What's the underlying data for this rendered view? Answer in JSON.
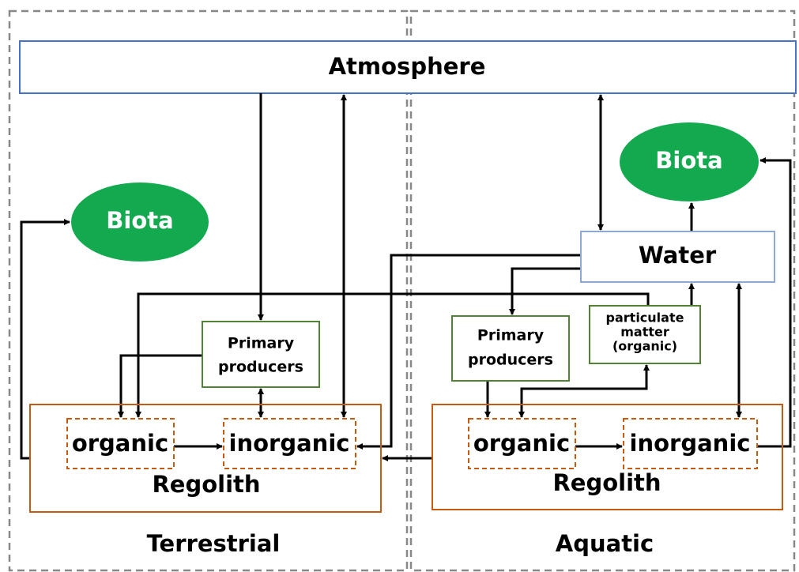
{
  "atmosphere": "Atmosphere",
  "terrestrial": {
    "label": "Terrestrial",
    "biota": "Biota",
    "primary_producers": [
      "Primary",
      "producers"
    ],
    "regolith": "Regolith",
    "organic": "organic",
    "inorganic": "inorganic"
  },
  "aquatic": {
    "label": "Aquatic",
    "biota": "Biota",
    "water": "Water",
    "primary_producers": [
      "Primary",
      "producers"
    ],
    "particulate_matter": [
      "particulate",
      "matter",
      "(organic)"
    ],
    "regolith": "Regolith",
    "organic": "organic",
    "inorganic": "inorganic"
  }
}
